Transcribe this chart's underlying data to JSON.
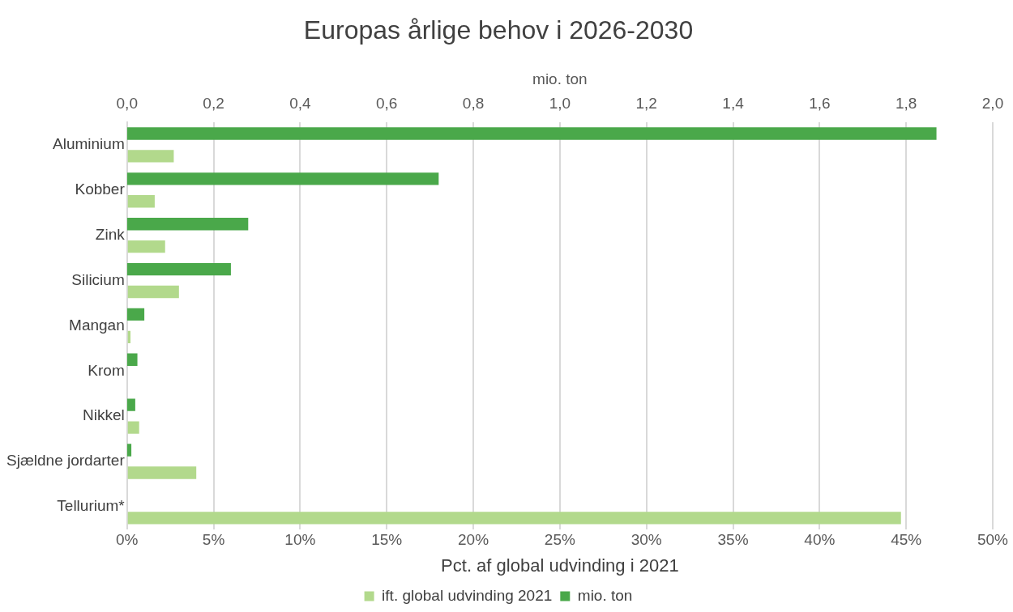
{
  "chart_data": {
    "type": "bar",
    "orientation": "horizontal",
    "title": "Europas årlige behov i 2026-2030",
    "categories": [
      "Aluminium",
      "Kobber",
      "Zink",
      "Silicium",
      "Mangan",
      "Krom",
      "Nikkel",
      "Sjældne jordarter",
      "Tellurium*"
    ],
    "series": [
      {
        "name": "mio. ton",
        "color": "#4aa84a",
        "axis": "x2",
        "values": [
          1.87,
          0.72,
          0.28,
          0.24,
          0.04,
          0.024,
          0.019,
          0.01,
          null
        ]
      },
      {
        "name": "ift. global udvinding 2021",
        "color": "#b2d98c",
        "values": [
          2.7,
          1.6,
          2.2,
          3.0,
          0.2,
          null,
          0.7,
          4.0,
          44.7
        ]
      }
    ],
    "xlabel": "Pct. af global udvinding i 2021",
    "x2label": "mio. ton",
    "xlim": [
      0,
      50
    ],
    "xticks": [
      {
        "value": 0,
        "label": "0%"
      },
      {
        "value": 5,
        "label": "5%"
      },
      {
        "value": 10,
        "label": "10%"
      },
      {
        "value": 15,
        "label": "15%"
      },
      {
        "value": 20,
        "label": "20%"
      },
      {
        "value": 25,
        "label": "25%"
      },
      {
        "value": 30,
        "label": "30%"
      },
      {
        "value": 35,
        "label": "35%"
      },
      {
        "value": 40,
        "label": "40%"
      },
      {
        "value": 45,
        "label": "45%"
      },
      {
        "value": 50,
        "label": "50%"
      }
    ],
    "x2lim": [
      0,
      2
    ],
    "x2ticks": [
      {
        "value": 0,
        "label": "0,0"
      },
      {
        "value": 0.2,
        "label": "0,2"
      },
      {
        "value": 0.4,
        "label": "0,4"
      },
      {
        "value": 0.6,
        "label": "0,6"
      },
      {
        "value": 0.8,
        "label": "0,8"
      },
      {
        "value": 1,
        "label": "1,0"
      },
      {
        "value": 1.2,
        "label": "1,2"
      },
      {
        "value": 1.4,
        "label": "1,4"
      },
      {
        "value": 1.6,
        "label": "1,6"
      },
      {
        "value": 1.8,
        "label": "1,8"
      },
      {
        "value": 2,
        "label": "2,0"
      }
    ],
    "grid": "x",
    "legend": "bottom"
  }
}
